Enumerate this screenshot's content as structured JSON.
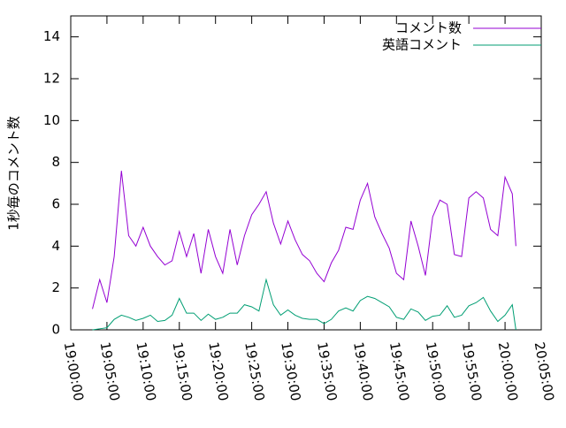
{
  "chart_data": {
    "type": "line",
    "y_label": "1秒毎のコメント数",
    "x": [
      "19:03:00",
      "19:04:00",
      "19:05:00",
      "19:06:00",
      "19:07:00",
      "19:08:00",
      "19:09:00",
      "19:10:00",
      "19:11:00",
      "19:12:00",
      "19:13:00",
      "19:14:00",
      "19:15:00",
      "19:16:00",
      "19:17:00",
      "19:18:00",
      "19:19:00",
      "19:20:00",
      "19:21:00",
      "19:22:00",
      "19:23:00",
      "19:24:00",
      "19:25:00",
      "19:26:00",
      "19:27:00",
      "19:28:00",
      "19:29:00",
      "19:30:00",
      "19:31:00",
      "19:32:00",
      "19:33:00",
      "19:34:00",
      "19:35:00",
      "19:36:00",
      "19:37:00",
      "19:38:00",
      "19:39:00",
      "19:40:00",
      "19:41:00",
      "19:42:00",
      "19:43:00",
      "19:44:00",
      "19:45:00",
      "19:46:00",
      "19:47:00",
      "19:48:00",
      "19:49:00",
      "19:50:00",
      "19:51:00",
      "19:52:00",
      "19:53:00",
      "19:54:00",
      "19:55:00",
      "19:56:00",
      "19:57:00",
      "19:58:00",
      "19:59:00",
      "20:00:00",
      "20:01:00",
      "20:01:30"
    ],
    "series": [
      {
        "name": "コメント数",
        "color": "#9400d3",
        "values": [
          1.0,
          2.4,
          1.3,
          3.5,
          7.6,
          4.5,
          4.0,
          4.9,
          4.0,
          3.5,
          3.1,
          3.3,
          4.7,
          3.5,
          4.6,
          2.7,
          4.8,
          3.5,
          2.7,
          4.8,
          3.1,
          4.5,
          5.5,
          6.0,
          6.6,
          5.1,
          4.1,
          5.2,
          4.3,
          3.6,
          3.3,
          2.7,
          2.3,
          3.2,
          3.8,
          4.9,
          4.8,
          6.2,
          7.0,
          5.4,
          4.6,
          3.9,
          2.7,
          2.4,
          5.2,
          4.0,
          2.6,
          5.4,
          6.2,
          6.0,
          3.6,
          3.5,
          6.3,
          6.6,
          6.3,
          4.8,
          4.5,
          7.3,
          6.5,
          4.0
        ]
      },
      {
        "name": "英語コメント",
        "color": "#009e73",
        "values": [
          0.0,
          0.05,
          0.1,
          0.5,
          0.7,
          0.6,
          0.45,
          0.55,
          0.7,
          0.4,
          0.45,
          0.7,
          1.5,
          0.8,
          0.8,
          0.45,
          0.75,
          0.5,
          0.6,
          0.8,
          0.8,
          1.2,
          1.1,
          0.9,
          2.4,
          1.2,
          0.7,
          0.95,
          0.7,
          0.55,
          0.5,
          0.5,
          0.3,
          0.5,
          0.9,
          1.05,
          0.9,
          1.4,
          1.6,
          1.5,
          1.3,
          1.1,
          0.6,
          0.5,
          1.0,
          0.85,
          0.45,
          0.65,
          0.7,
          1.15,
          0.6,
          0.7,
          1.15,
          1.3,
          1.55,
          0.9,
          0.4,
          0.7,
          1.2,
          0.0
        ]
      }
    ],
    "xlim": [
      "19:00:00",
      "20:05:00"
    ],
    "xticks": [
      "19:00:00",
      "19:05:00",
      "19:10:00",
      "19:15:00",
      "19:20:00",
      "19:25:00",
      "19:30:00",
      "19:35:00",
      "19:40:00",
      "19:45:00",
      "19:50:00",
      "19:55:00",
      "20:00:00",
      "20:05:00"
    ],
    "ylim": [
      0,
      15
    ],
    "yticks": [
      0,
      2,
      4,
      6,
      8,
      10,
      12,
      14
    ],
    "legend": "top-right"
  }
}
